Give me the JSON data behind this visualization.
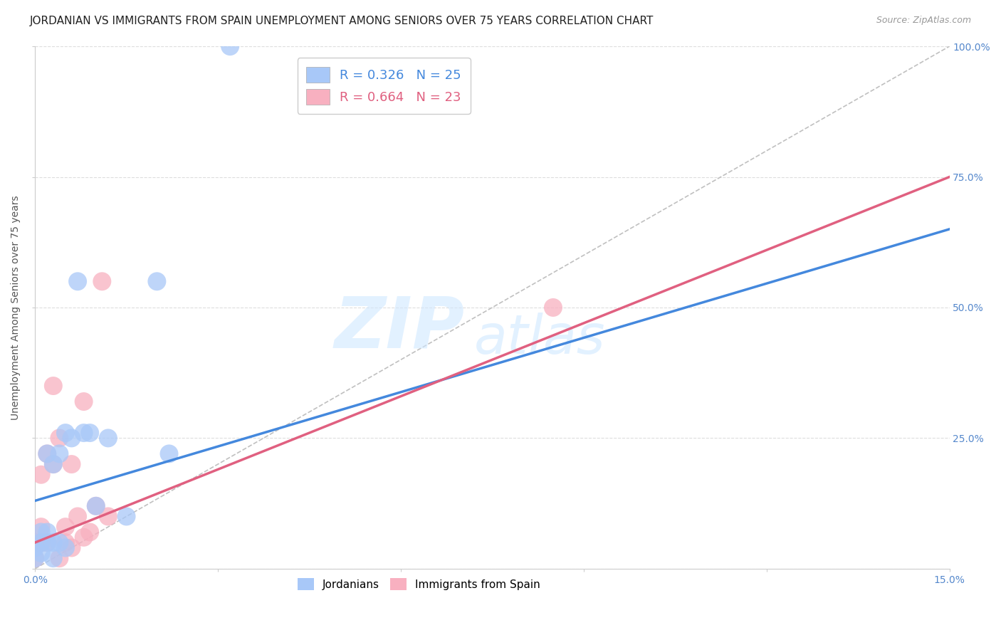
{
  "title": "JORDANIAN VS IMMIGRANTS FROM SPAIN UNEMPLOYMENT AMONG SENIORS OVER 75 YEARS CORRELATION CHART",
  "source": "Source: ZipAtlas.com",
  "ylabel": "Unemployment Among Seniors over 75 years",
  "xlim": [
    0.0,
    0.15
  ],
  "ylim": [
    0.0,
    1.0
  ],
  "xticks": [
    0.0,
    0.03,
    0.06,
    0.09,
    0.12,
    0.15
  ],
  "xticklabels": [
    "0.0%",
    "",
    "",
    "",
    "",
    "15.0%"
  ],
  "yticks": [
    0.0,
    0.25,
    0.5,
    0.75,
    1.0
  ],
  "yticklabels": [
    "",
    "25.0%",
    "50.0%",
    "75.0%",
    "100.0%"
  ],
  "jordanian_x": [
    0.0,
    0.0,
    0.001,
    0.001,
    0.001,
    0.002,
    0.002,
    0.002,
    0.003,
    0.003,
    0.003,
    0.004,
    0.004,
    0.005,
    0.005,
    0.006,
    0.007,
    0.008,
    0.009,
    0.01,
    0.012,
    0.015,
    0.02,
    0.022,
    0.032
  ],
  "jordanian_y": [
    0.02,
    0.04,
    0.03,
    0.05,
    0.07,
    0.05,
    0.07,
    0.22,
    0.02,
    0.05,
    0.2,
    0.05,
    0.22,
    0.04,
    0.26,
    0.25,
    0.55,
    0.26,
    0.26,
    0.12,
    0.25,
    0.1,
    0.55,
    0.22,
    1.0
  ],
  "spain_x": [
    0.0,
    0.0,
    0.001,
    0.001,
    0.001,
    0.002,
    0.002,
    0.003,
    0.003,
    0.004,
    0.004,
    0.005,
    0.005,
    0.006,
    0.006,
    0.007,
    0.008,
    0.008,
    0.009,
    0.01,
    0.011,
    0.012,
    0.085
  ],
  "spain_y": [
    0.02,
    0.05,
    0.05,
    0.08,
    0.18,
    0.05,
    0.22,
    0.2,
    0.35,
    0.02,
    0.25,
    0.05,
    0.08,
    0.04,
    0.2,
    0.1,
    0.06,
    0.32,
    0.07,
    0.12,
    0.55,
    0.1,
    0.5
  ],
  "jordanian_color": "#a8c8f8",
  "spain_color": "#f8b0c0",
  "jordanian_line_color": "#4488dd",
  "spain_line_color": "#e06080",
  "diagonal_color": "#c0c0c0",
  "R_jordanian": 0.326,
  "N_jordanian": 25,
  "R_spain": 0.664,
  "N_spain": 23,
  "watermark_zip": "ZIP",
  "watermark_atlas": "atlas",
  "background_color": "#ffffff",
  "grid_color": "#dddddd",
  "axis_label_color": "#5588cc",
  "title_fontsize": 11,
  "axis_fontsize": 10,
  "legend_fontsize": 13
}
